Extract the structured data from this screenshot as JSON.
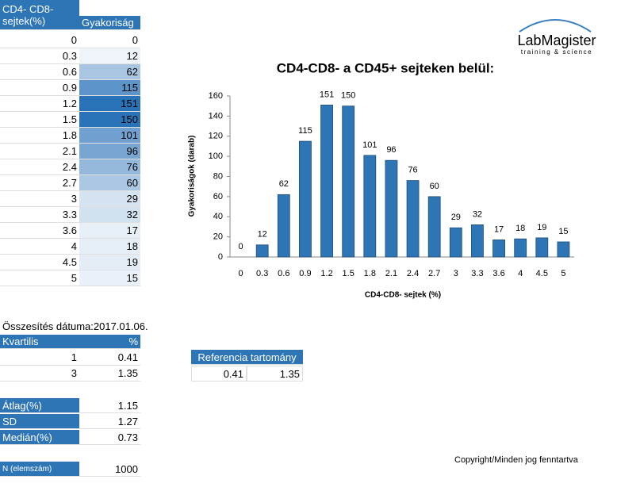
{
  "table": {
    "header": [
      "CD4- CD8- sejtek(%)",
      "Gyakoriság"
    ],
    "rows": [
      [
        0,
        0
      ],
      [
        0.3,
        12
      ],
      [
        0.6,
        62
      ],
      [
        0.9,
        115
      ],
      [
        1.2,
        151
      ],
      [
        1.5,
        150
      ],
      [
        1.8,
        101
      ],
      [
        2.1,
        96
      ],
      [
        2.4,
        76
      ],
      [
        2.7,
        60
      ],
      [
        3,
        29
      ],
      [
        3.3,
        32
      ],
      [
        3.6,
        17
      ],
      [
        4,
        18
      ],
      [
        4.5,
        19
      ],
      [
        5,
        15
      ]
    ]
  },
  "logo": {
    "name": "LabMagister",
    "tagline": "training & science"
  },
  "chart_data": {
    "type": "bar",
    "title": "CD4-CD8- a CD45+ sejteken belül:",
    "x_label": "CD4-CD8- sejtek (%)",
    "y_label": "Gyakoriságok (darab)",
    "categories": [
      0,
      0.3,
      0.6,
      0.9,
      1.2,
      1.5,
      1.8,
      2.1,
      2.4,
      2.7,
      3,
      3.3,
      3.6,
      4,
      4.5,
      5
    ],
    "values": [
      0,
      12,
      62,
      115,
      151,
      150,
      101,
      96,
      76,
      60,
      29,
      32,
      17,
      18,
      19,
      15
    ],
    "color": "#2e75b6",
    "ylim": [
      0,
      160
    ],
    "yticks": [
      0,
      20,
      40,
      60,
      80,
      100,
      120,
      140,
      160
    ],
    "grid": false
  },
  "date_label": "Összesítés dátuma:2017.01.06.",
  "quartiles": {
    "header": [
      "Kvartilis",
      "%"
    ],
    "rows": [
      [
        1,
        0.41
      ],
      [
        3,
        1.35
      ]
    ]
  },
  "reference": {
    "title": "Referencia tartomány",
    "values": [
      0.41,
      1.35
    ]
  },
  "stats": [
    {
      "label": "Átlag(%)",
      "value": 1.15
    },
    {
      "label": "SD",
      "value": 1.27
    },
    {
      "label": "Medián(%)",
      "value": 0.73
    }
  ],
  "n": {
    "label": "N (elemszám)",
    "value": 1000
  },
  "copyright": "Copyright/Minden jog fenntartva"
}
